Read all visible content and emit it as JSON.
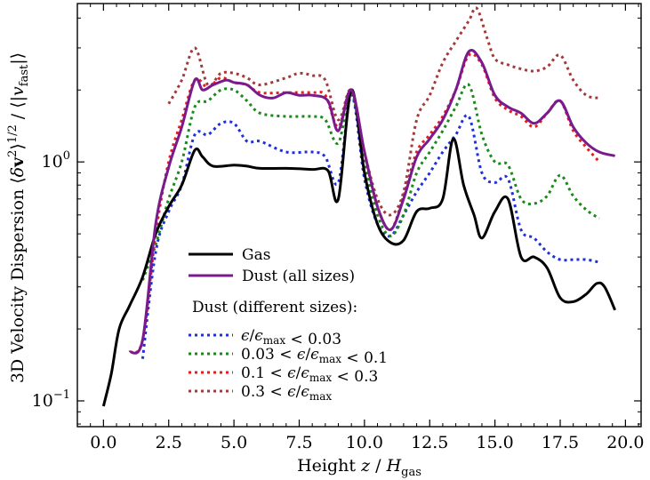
{
  "chart_data": {
    "type": "line",
    "xlabel": "Height z / H_gas",
    "ylabel": "3D Velocity Dispersion ⟨δv²⟩^1/2 / ⟨|v_fast|⟩",
    "xlim": [
      -1.0,
      20.6
    ],
    "ylim": [
      0.078,
      4.6
    ],
    "y_scale": "log",
    "x_ticks": [
      "0.0",
      "2.5",
      "5.0",
      "7.5",
      "10.0",
      "12.5",
      "15.0",
      "17.5",
      "20.0"
    ],
    "y_ticks": [
      {
        "base": "10",
        "exp": "−1",
        "value": 0.1
      },
      {
        "base": "10",
        "exp": "0",
        "value": 1.0
      }
    ],
    "legend_placement": "center-left",
    "series": [
      {
        "name": "Gas",
        "color": "#000000",
        "style": "solid",
        "width": 3,
        "points": [
          [
            0.0,
            0.095
          ],
          [
            0.3,
            0.13
          ],
          [
            0.6,
            0.2
          ],
          [
            1.0,
            0.25
          ],
          [
            1.5,
            0.33
          ],
          [
            2.0,
            0.5
          ],
          [
            2.5,
            0.65
          ],
          [
            3.0,
            0.8
          ],
          [
            3.5,
            1.12
          ],
          [
            3.8,
            1.05
          ],
          [
            4.2,
            0.96
          ],
          [
            5.0,
            0.97
          ],
          [
            5.5,
            0.96
          ],
          [
            6.0,
            0.94
          ],
          [
            7.0,
            0.94
          ],
          [
            8.0,
            0.93
          ],
          [
            8.6,
            0.92
          ],
          [
            9.0,
            0.7
          ],
          [
            9.5,
            2.0
          ],
          [
            10.0,
            0.9
          ],
          [
            10.5,
            0.55
          ],
          [
            11.0,
            0.46
          ],
          [
            11.5,
            0.47
          ],
          [
            12.0,
            0.62
          ],
          [
            12.5,
            0.64
          ],
          [
            13.0,
            0.7
          ],
          [
            13.4,
            1.25
          ],
          [
            13.8,
            0.8
          ],
          [
            14.2,
            0.6
          ],
          [
            14.5,
            0.48
          ],
          [
            15.0,
            0.62
          ],
          [
            15.5,
            0.7
          ],
          [
            16.0,
            0.4
          ],
          [
            16.5,
            0.4
          ],
          [
            17.0,
            0.36
          ],
          [
            17.5,
            0.27
          ],
          [
            18.0,
            0.26
          ],
          [
            18.5,
            0.28
          ],
          [
            18.9,
            0.31
          ],
          [
            19.2,
            0.3
          ],
          [
            19.6,
            0.24
          ]
        ]
      },
      {
        "name": "Dust (all sizes)",
        "color": "#7a1a8c",
        "style": "solid",
        "width": 3,
        "points": [
          [
            1.0,
            0.16
          ],
          [
            1.5,
            0.18
          ],
          [
            2.0,
            0.55
          ],
          [
            2.5,
            0.95
          ],
          [
            3.0,
            1.4
          ],
          [
            3.5,
            2.2
          ],
          [
            3.8,
            2.0
          ],
          [
            4.2,
            2.1
          ],
          [
            4.7,
            2.2
          ],
          [
            5.0,
            2.15
          ],
          [
            5.5,
            2.1
          ],
          [
            6.0,
            1.9
          ],
          [
            6.5,
            1.85
          ],
          [
            7.0,
            1.95
          ],
          [
            7.5,
            1.9
          ],
          [
            8.0,
            1.9
          ],
          [
            8.6,
            1.8
          ],
          [
            9.0,
            1.35
          ],
          [
            9.5,
            2.0
          ],
          [
            10.0,
            1.1
          ],
          [
            10.5,
            0.65
          ],
          [
            11.0,
            0.52
          ],
          [
            11.5,
            0.7
          ],
          [
            12.0,
            1.05
          ],
          [
            12.5,
            1.25
          ],
          [
            13.0,
            1.5
          ],
          [
            13.5,
            2.0
          ],
          [
            14.0,
            2.9
          ],
          [
            14.5,
            2.6
          ],
          [
            15.0,
            1.9
          ],
          [
            15.5,
            1.7
          ],
          [
            16.0,
            1.6
          ],
          [
            16.5,
            1.45
          ],
          [
            17.0,
            1.6
          ],
          [
            17.5,
            1.8
          ],
          [
            18.0,
            1.4
          ],
          [
            18.5,
            1.2
          ],
          [
            19.0,
            1.1
          ],
          [
            19.6,
            1.06
          ]
        ]
      }
    ],
    "legend_subtitle": "Dust (different sizes):",
    "dotted_series": [
      {
        "name": "ε/ε_max < 0.03",
        "color": "#1f2fdc",
        "style": "dotted",
        "width": 3,
        "points": [
          [
            1.5,
            0.15
          ],
          [
            2.0,
            0.42
          ],
          [
            2.5,
            0.62
          ],
          [
            3.0,
            0.8
          ],
          [
            3.5,
            1.3
          ],
          [
            4.0,
            1.3
          ],
          [
            4.5,
            1.45
          ],
          [
            5.0,
            1.45
          ],
          [
            5.5,
            1.22
          ],
          [
            6.0,
            1.22
          ],
          [
            7.0,
            1.1
          ],
          [
            8.0,
            1.1
          ],
          [
            8.5,
            1.05
          ],
          [
            9.0,
            0.82
          ],
          [
            9.5,
            1.9
          ],
          [
            10.0,
            0.85
          ],
          [
            10.5,
            0.55
          ],
          [
            11.0,
            0.49
          ],
          [
            11.5,
            0.6
          ],
          [
            12.0,
            0.75
          ],
          [
            12.5,
            0.9
          ],
          [
            13.0,
            1.1
          ],
          [
            13.5,
            1.3
          ],
          [
            14.0,
            1.55
          ],
          [
            14.5,
            0.9
          ],
          [
            15.0,
            0.82
          ],
          [
            15.5,
            0.85
          ],
          [
            16.0,
            0.52
          ],
          [
            16.5,
            0.48
          ],
          [
            17.0,
            0.42
          ],
          [
            17.5,
            0.39
          ],
          [
            18.0,
            0.39
          ],
          [
            18.5,
            0.39
          ],
          [
            19.0,
            0.38
          ]
        ]
      },
      {
        "name": "0.03 < ε/ε_max < 0.1",
        "color": "#1a8a1a",
        "style": "dotted",
        "width": 3,
        "points": [
          [
            1.5,
            0.32
          ],
          [
            2.0,
            0.45
          ],
          [
            2.5,
            0.7
          ],
          [
            3.0,
            1.0
          ],
          [
            3.5,
            1.7
          ],
          [
            4.0,
            1.8
          ],
          [
            4.5,
            2.0
          ],
          [
            5.0,
            2.0
          ],
          [
            5.5,
            1.8
          ],
          [
            6.0,
            1.6
          ],
          [
            7.0,
            1.55
          ],
          [
            8.0,
            1.55
          ],
          [
            8.5,
            1.5
          ],
          [
            9.0,
            1.2
          ],
          [
            9.5,
            1.95
          ],
          [
            10.0,
            1.0
          ],
          [
            10.5,
            0.6
          ],
          [
            11.0,
            0.49
          ],
          [
            11.5,
            0.6
          ],
          [
            12.0,
            0.9
          ],
          [
            12.5,
            1.1
          ],
          [
            13.0,
            1.35
          ],
          [
            13.5,
            1.7
          ],
          [
            14.0,
            2.1
          ],
          [
            14.5,
            1.3
          ],
          [
            15.0,
            1.0
          ],
          [
            15.5,
            0.97
          ],
          [
            16.0,
            0.7
          ],
          [
            16.5,
            0.67
          ],
          [
            17.0,
            0.72
          ],
          [
            17.5,
            0.88
          ],
          [
            18.0,
            0.72
          ],
          [
            18.5,
            0.63
          ],
          [
            19.0,
            0.58
          ]
        ]
      },
      {
        "name": "0.1 < ε/ε_max < 0.3",
        "color": "#e81c1c",
        "style": "dotted",
        "width": 3,
        "points": [
          [
            1.0,
            0.16
          ],
          [
            1.5,
            0.18
          ],
          [
            2.0,
            0.5
          ],
          [
            2.5,
            1.0
          ],
          [
            3.0,
            1.5
          ],
          [
            3.5,
            2.2
          ],
          [
            4.0,
            2.05
          ],
          [
            4.5,
            2.25
          ],
          [
            5.0,
            2.15
          ],
          [
            5.5,
            2.1
          ],
          [
            6.0,
            1.95
          ],
          [
            7.0,
            1.95
          ],
          [
            8.0,
            1.95
          ],
          [
            8.5,
            1.9
          ],
          [
            9.0,
            1.4
          ],
          [
            9.5,
            2.0
          ],
          [
            10.0,
            1.1
          ],
          [
            10.5,
            0.65
          ],
          [
            11.0,
            0.52
          ],
          [
            11.5,
            0.72
          ],
          [
            12.0,
            1.1
          ],
          [
            12.5,
            1.3
          ],
          [
            13.0,
            1.55
          ],
          [
            13.5,
            2.0
          ],
          [
            14.0,
            2.8
          ],
          [
            14.5,
            2.55
          ],
          [
            15.0,
            1.85
          ],
          [
            15.5,
            1.65
          ],
          [
            16.0,
            1.55
          ],
          [
            16.5,
            1.4
          ],
          [
            17.0,
            1.6
          ],
          [
            17.5,
            1.8
          ],
          [
            18.0,
            1.35
          ],
          [
            18.5,
            1.15
          ],
          [
            19.0,
            1.0
          ]
        ]
      },
      {
        "name": "0.3 < ε/ε_max",
        "color": "#a33a3a",
        "style": "dotted",
        "width": 3,
        "points": [
          [
            2.5,
            1.75
          ],
          [
            3.0,
            2.2
          ],
          [
            3.5,
            3.0
          ],
          [
            4.0,
            2.1
          ],
          [
            4.5,
            2.35
          ],
          [
            5.0,
            2.35
          ],
          [
            5.5,
            2.25
          ],
          [
            6.0,
            2.1
          ],
          [
            7.0,
            2.25
          ],
          [
            7.5,
            2.35
          ],
          [
            8.0,
            2.3
          ],
          [
            8.5,
            2.2
          ],
          [
            9.0,
            1.5
          ],
          [
            9.5,
            2.0
          ],
          [
            10.0,
            1.1
          ],
          [
            10.5,
            0.7
          ],
          [
            11.0,
            0.6
          ],
          [
            11.5,
            0.75
          ],
          [
            12.0,
            1.5
          ],
          [
            12.5,
            1.9
          ],
          [
            13.0,
            2.6
          ],
          [
            13.5,
            3.2
          ],
          [
            14.0,
            3.9
          ],
          [
            14.3,
            4.4
          ],
          [
            14.7,
            3.3
          ],
          [
            15.0,
            2.7
          ],
          [
            15.5,
            2.55
          ],
          [
            16.0,
            2.45
          ],
          [
            16.5,
            2.4
          ],
          [
            17.0,
            2.5
          ],
          [
            17.5,
            2.8
          ],
          [
            18.0,
            2.2
          ],
          [
            18.5,
            1.9
          ],
          [
            19.0,
            1.85
          ]
        ]
      }
    ]
  }
}
